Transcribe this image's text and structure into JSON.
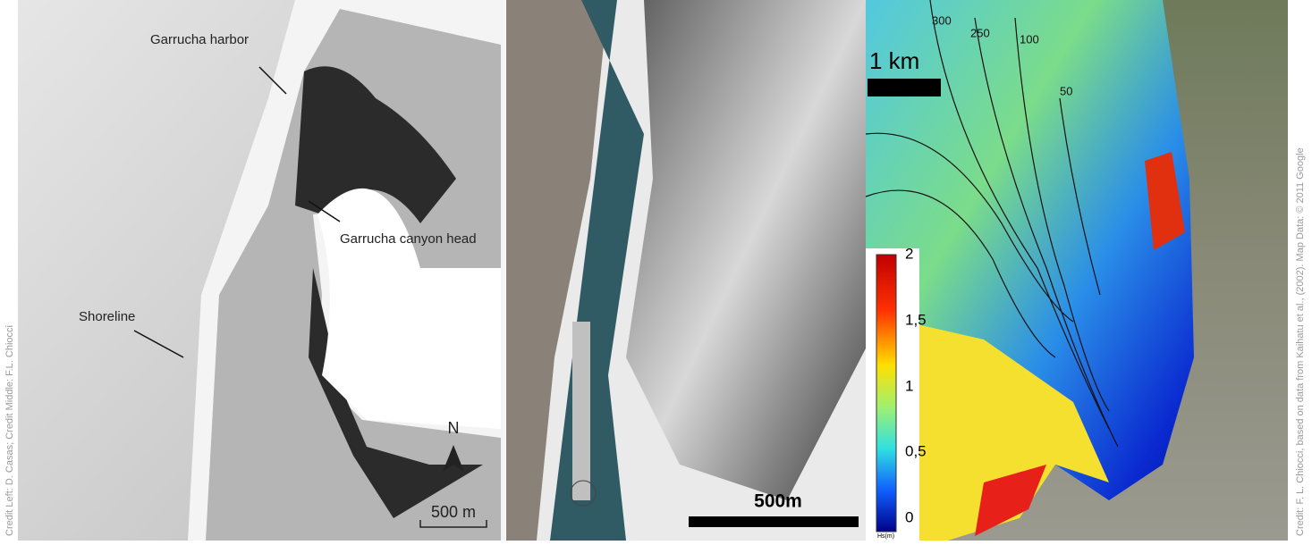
{
  "credits": {
    "left": "Credit Left: D. Casas; Credit Middle: F.L. Chiocci",
    "right": "Credit: F. L. Chiocci, based on data from Kaihatu et al., (2002). Map Data: © 2011 Google"
  },
  "panel_left": {
    "labels": {
      "harbor": "Garrucha harbor",
      "canyon": "Garrucha canyon head",
      "shoreline": "Shoreline"
    },
    "north": "N",
    "scale": "500 m"
  },
  "panel_middle": {
    "scale": "500m"
  },
  "panel_right": {
    "scale": "1 km",
    "contours": [
      "300",
      "250",
      "100",
      "50"
    ],
    "colorbar": {
      "ticks": [
        "2",
        "1,5",
        "1",
        "0,5",
        "0"
      ],
      "unit": "Hs(m)"
    }
  }
}
